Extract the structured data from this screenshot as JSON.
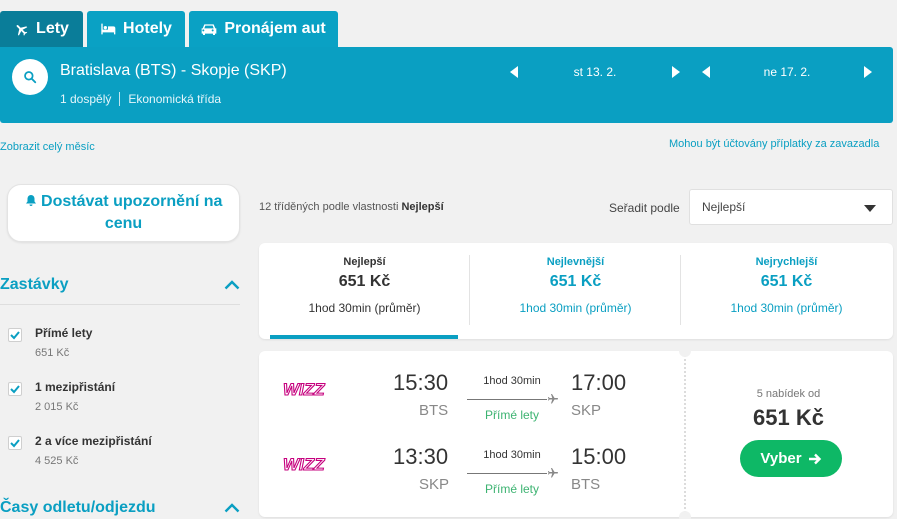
{
  "tabs": [
    {
      "label": "Lety"
    },
    {
      "label": "Hotely"
    },
    {
      "label": "Pronájem aut"
    }
  ],
  "search": {
    "route": "Bratislava (BTS) - Skopje (SKP)",
    "passengers": "1 dospělý",
    "cabin": "Ekonomická třída",
    "depart_date": "st 13. 2.",
    "return_date": "ne 17. 2."
  },
  "links": {
    "whole_month": "Zobrazit celý měsíc",
    "baggage_fees": "Mohou být účtovány příplatky za zavazadla"
  },
  "price_alert": {
    "label": "Dostávat upozornění na cenu"
  },
  "filters": {
    "stops_title": "Zastávky",
    "stops": [
      {
        "label": "Přímé lety",
        "price": "651 Kč",
        "checked": true
      },
      {
        "label": "1 mezipřistání",
        "price": "2 015 Kč",
        "checked": true
      },
      {
        "label": "2 a více mezipřistání",
        "price": "4 525 Kč",
        "checked": true
      }
    ],
    "times_title": "Časy odletu/odjezdu"
  },
  "results": {
    "count_prefix": "12 tříděných podle vlastnosti",
    "count_sort": "Nejlepší",
    "sort_label": "Seřadit podle",
    "sort_value": "Nejlepší"
  },
  "sort_tabs": [
    {
      "title": "Nejlepší",
      "price": "651 Kč",
      "duration": "1hod 30min (průměr)",
      "active": true
    },
    {
      "title": "Nejlevnější",
      "price": "651 Kč",
      "duration": "1hod 30min (průměr)",
      "active": false
    },
    {
      "title": "Nejrychlejší",
      "price": "651 Kč",
      "duration": "1hod 30min (průměr)",
      "active": false
    }
  ],
  "result": {
    "legs": [
      {
        "airline": "WIZZ",
        "dep_time": "15:30",
        "dep_airport": "BTS",
        "duration": "1hod 30min",
        "type": "Přímé lety",
        "arr_time": "17:00",
        "arr_airport": "SKP"
      },
      {
        "airline": "WIZZ",
        "dep_time": "13:30",
        "dep_airport": "SKP",
        "duration": "1hod 30min",
        "type": "Přímé lety",
        "arr_time": "15:00",
        "arr_airport": "BTS"
      }
    ],
    "offers": "5 nabídek od",
    "price": "651 Kč",
    "select_label": "Vyber"
  },
  "colors": {
    "accent": "#0a9fc2",
    "active_tab": "#0a7d99",
    "cta": "#0eb866",
    "direct": "#3cb371",
    "wizz": "#c6007e"
  }
}
